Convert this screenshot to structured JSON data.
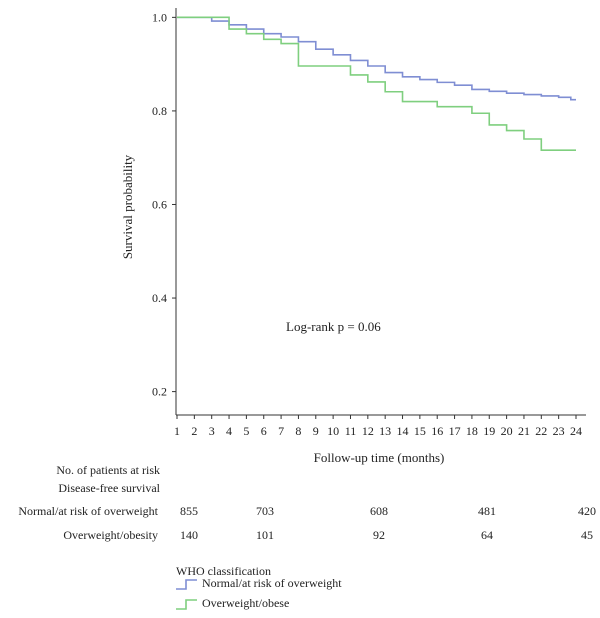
{
  "chart_data": {
    "type": "line",
    "subtype": "kaplan-meier",
    "xlabel": "Follow-up time (months)",
    "ylabel": "Survival probability",
    "xlim": [
      1,
      24
    ],
    "ylim": [
      0.15,
      1.02
    ],
    "x_ticks": [
      1,
      2,
      3,
      4,
      5,
      6,
      7,
      8,
      9,
      10,
      11,
      12,
      13,
      14,
      15,
      16,
      17,
      18,
      19,
      20,
      21,
      22,
      23,
      24
    ],
    "y_ticks": [
      {
        "value": 0.2,
        "label": "0.2"
      },
      {
        "value": 0.4,
        "label": "0.4"
      },
      {
        "value": 0.6,
        "label": "0.6"
      },
      {
        "value": 0.8,
        "label": "0.8"
      },
      {
        "value": 1.0,
        "label": "1.0"
      }
    ],
    "annotation": "Log-rank p = 0.06",
    "grid": false,
    "series": [
      {
        "name": "Normal/at risk of overweight",
        "color": "#7f8ed3",
        "steps": [
          [
            1,
            1.0
          ],
          [
            3,
            0.992
          ],
          [
            4,
            0.984
          ],
          [
            5,
            0.975
          ],
          [
            6,
            0.965
          ],
          [
            7,
            0.958
          ],
          [
            8,
            0.948
          ],
          [
            9,
            0.932
          ],
          [
            10,
            0.92
          ],
          [
            11,
            0.908
          ],
          [
            12,
            0.896
          ],
          [
            13,
            0.882
          ],
          [
            14,
            0.873
          ],
          [
            15,
            0.867
          ],
          [
            16,
            0.861
          ],
          [
            17,
            0.855
          ],
          [
            18,
            0.846
          ],
          [
            19,
            0.842
          ],
          [
            20,
            0.838
          ],
          [
            21,
            0.835
          ],
          [
            22,
            0.832
          ],
          [
            23,
            0.829
          ],
          [
            23.7,
            0.824
          ]
        ],
        "end": 24
      },
      {
        "name": "Overweight/obese",
        "color": "#7fcf7f",
        "steps": [
          [
            1,
            1.0
          ],
          [
            4,
            0.975
          ],
          [
            5,
            0.965
          ],
          [
            6,
            0.953
          ],
          [
            7,
            0.944
          ],
          [
            8,
            0.896
          ],
          [
            11,
            0.877
          ],
          [
            12,
            0.862
          ],
          [
            13,
            0.841
          ],
          [
            14,
            0.82
          ],
          [
            16,
            0.809
          ],
          [
            18,
            0.795
          ],
          [
            19,
            0.77
          ],
          [
            20,
            0.758
          ],
          [
            21,
            0.74
          ],
          [
            22,
            0.716
          ]
        ],
        "end": 24
      }
    ],
    "risk_table": {
      "title_line1": "No. of patients at risk",
      "title_line2": "Disease-free survival",
      "time_points": [
        1,
        6,
        12,
        18,
        24
      ],
      "rows": [
        {
          "label": "Normal/at risk of overweight",
          "values": [
            "855",
            "703",
            "608",
            "481",
            "420"
          ]
        },
        {
          "label": "Overweight/obesity",
          "values": [
            "140",
            "101",
            "92",
            "64",
            "45"
          ]
        }
      ]
    },
    "legend": {
      "title": "WHO classification",
      "position": "bottom-left",
      "items": [
        {
          "label": "Normal/at risk of overweight",
          "color": "#7f8ed3"
        },
        {
          "label": "Overweight/obese",
          "color": "#7fcf7f"
        }
      ]
    }
  }
}
